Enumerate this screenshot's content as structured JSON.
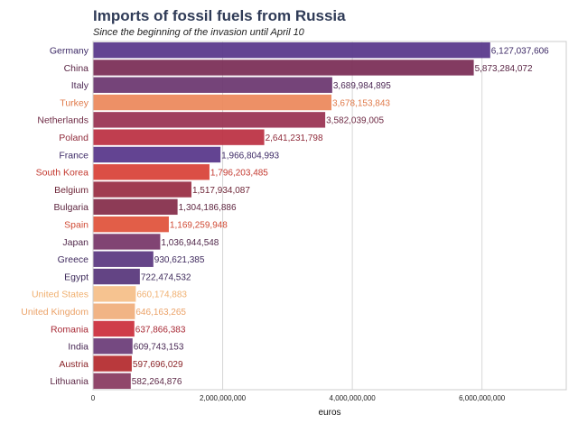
{
  "chart_data": {
    "type": "bar",
    "orientation": "horizontal",
    "title": "Imports of fossil fuels from Russia",
    "subtitle": "Since the beginning of the invasion until April 10",
    "xlabel": "euros",
    "ylabel": "",
    "xlim": [
      0,
      7300000000
    ],
    "xticks": [
      0,
      2000000000,
      4000000000,
      6000000000
    ],
    "xtick_labels": [
      "0",
      "2,000,000,000",
      "4,000,000,000",
      "6,000,000,000"
    ],
    "grid": true,
    "categories": [
      "Germany",
      "China",
      "Italy",
      "Turkey",
      "Netherlands",
      "Poland",
      "France",
      "South Korea",
      "Belgium",
      "Bulgaria",
      "Spain",
      "Japan",
      "Greece",
      "Egypt",
      "United States",
      "United Kingdom",
      "Romania",
      "India",
      "Austria",
      "Lithuania"
    ],
    "values": [
      6127037606,
      5873284072,
      3689984895,
      3678153843,
      3582039005,
      2641231798,
      1966804993,
      1796203485,
      1517934087,
      1304186886,
      1169259948,
      1036944548,
      930621385,
      722474532,
      660174883,
      646163265,
      637866383,
      609743153,
      597696029,
      582264876
    ],
    "value_labels": [
      "6,127,037,606",
      "5,873,284,072",
      "3,689,984,895",
      "3,678,153,843",
      "3,582,039,005",
      "2,641,231,798",
      "1,966,804,993",
      "1,796,203,485",
      "1,517,934,087",
      "1,304,186,886",
      "1,169,259,948",
      "1,036,944,548",
      "930,621,385",
      "722,474,532",
      "660,174,883",
      "646,163,265",
      "637,866,383",
      "609,743,153",
      "597,696,029",
      "582,264,876"
    ],
    "colors": [
      "#5b3a8c",
      "#7c3058",
      "#6e3a72",
      "#ec8a5e",
      "#9b3655",
      "#bd3446",
      "#5b3a8c",
      "#d9453b",
      "#9b3147",
      "#87304d",
      "#e0553e",
      "#7a3a6b",
      "#5e3c83",
      "#5b3a7d",
      "#f6c08a",
      "#f0b07e",
      "#cc3340",
      "#6e3f7a",
      "#b52e32",
      "#8a3d62"
    ],
    "label_colors": [
      "#3d2a66",
      "#5a2545",
      "#4e2a56",
      "#e07a4a",
      "#6e2a44",
      "#8f2a3a",
      "#3d2a66",
      "#c43a30",
      "#6e2638",
      "#5e2640",
      "#d04a34",
      "#52294c",
      "#3f2a5e",
      "#3d2a5a",
      "#f0b070",
      "#eba268",
      "#a82a36",
      "#4a2a56",
      "#8a2428",
      "#5e2a48"
    ]
  }
}
